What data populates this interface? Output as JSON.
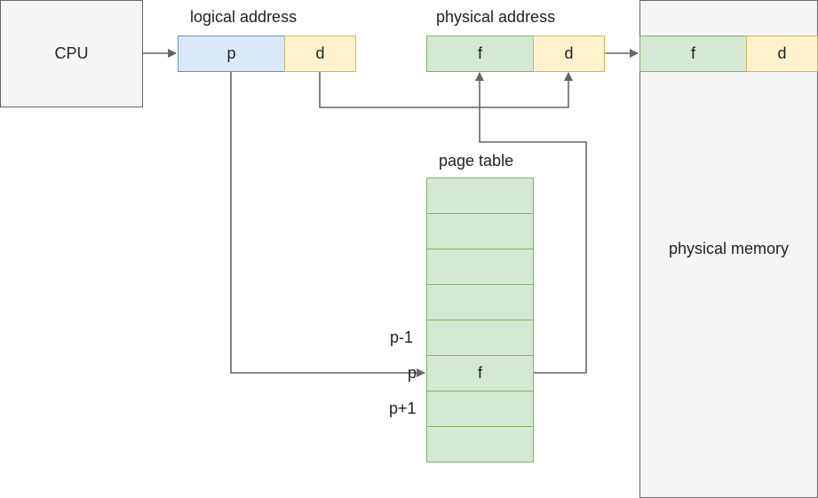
{
  "cpu": {
    "label": "CPU"
  },
  "logical_address": {
    "title": "logical address",
    "p": "p",
    "d": "d"
  },
  "physical_address": {
    "title": "physical address",
    "f": "f",
    "d": "d"
  },
  "memory": {
    "f": "f",
    "d": "d",
    "label": "physical memory"
  },
  "page_table": {
    "title": "page table",
    "rows": [
      "",
      "",
      "",
      "",
      "",
      "f",
      "",
      ""
    ],
    "row_labels": {
      "p_minus_1": "p-1",
      "p": "p",
      "p_plus_1": "p+1"
    }
  },
  "colors": {
    "gray": "#f5f5f5",
    "blue": "#dae8fc",
    "yellow": "#fff2cc",
    "green": "#d5e8d4",
    "arrow": "#666666"
  }
}
